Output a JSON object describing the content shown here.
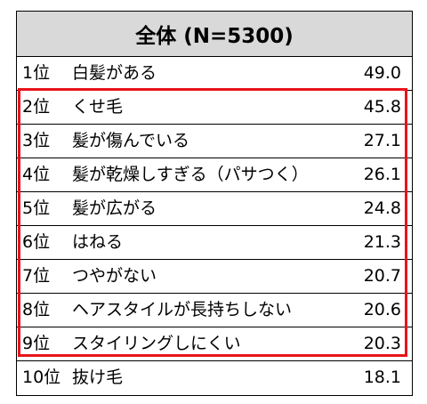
{
  "table": {
    "header": "全体 (N=5300)",
    "rows": [
      [
        "1位",
        "白髪がある",
        "49.0"
      ],
      [
        "2位",
        "くせ毛",
        "45.8"
      ],
      [
        "3位",
        "髪が傷んでいる",
        "27.1"
      ],
      [
        "4位",
        "髪が乾燥しすぎる（パサつく）",
        "26.1"
      ],
      [
        "5位",
        "髪が広がる",
        "24.8"
      ],
      [
        "6位",
        "はねる",
        "21.3"
      ],
      [
        "7位",
        "つやがない",
        "20.7"
      ],
      [
        "8位",
        "ヘアスタイルが長持ちしない",
        "20.6"
      ],
      [
        "9位",
        "スタイリングしにくい",
        "20.3"
      ],
      [
        "10位",
        "抜け毛",
        "18.1"
      ]
    ]
  }
}
